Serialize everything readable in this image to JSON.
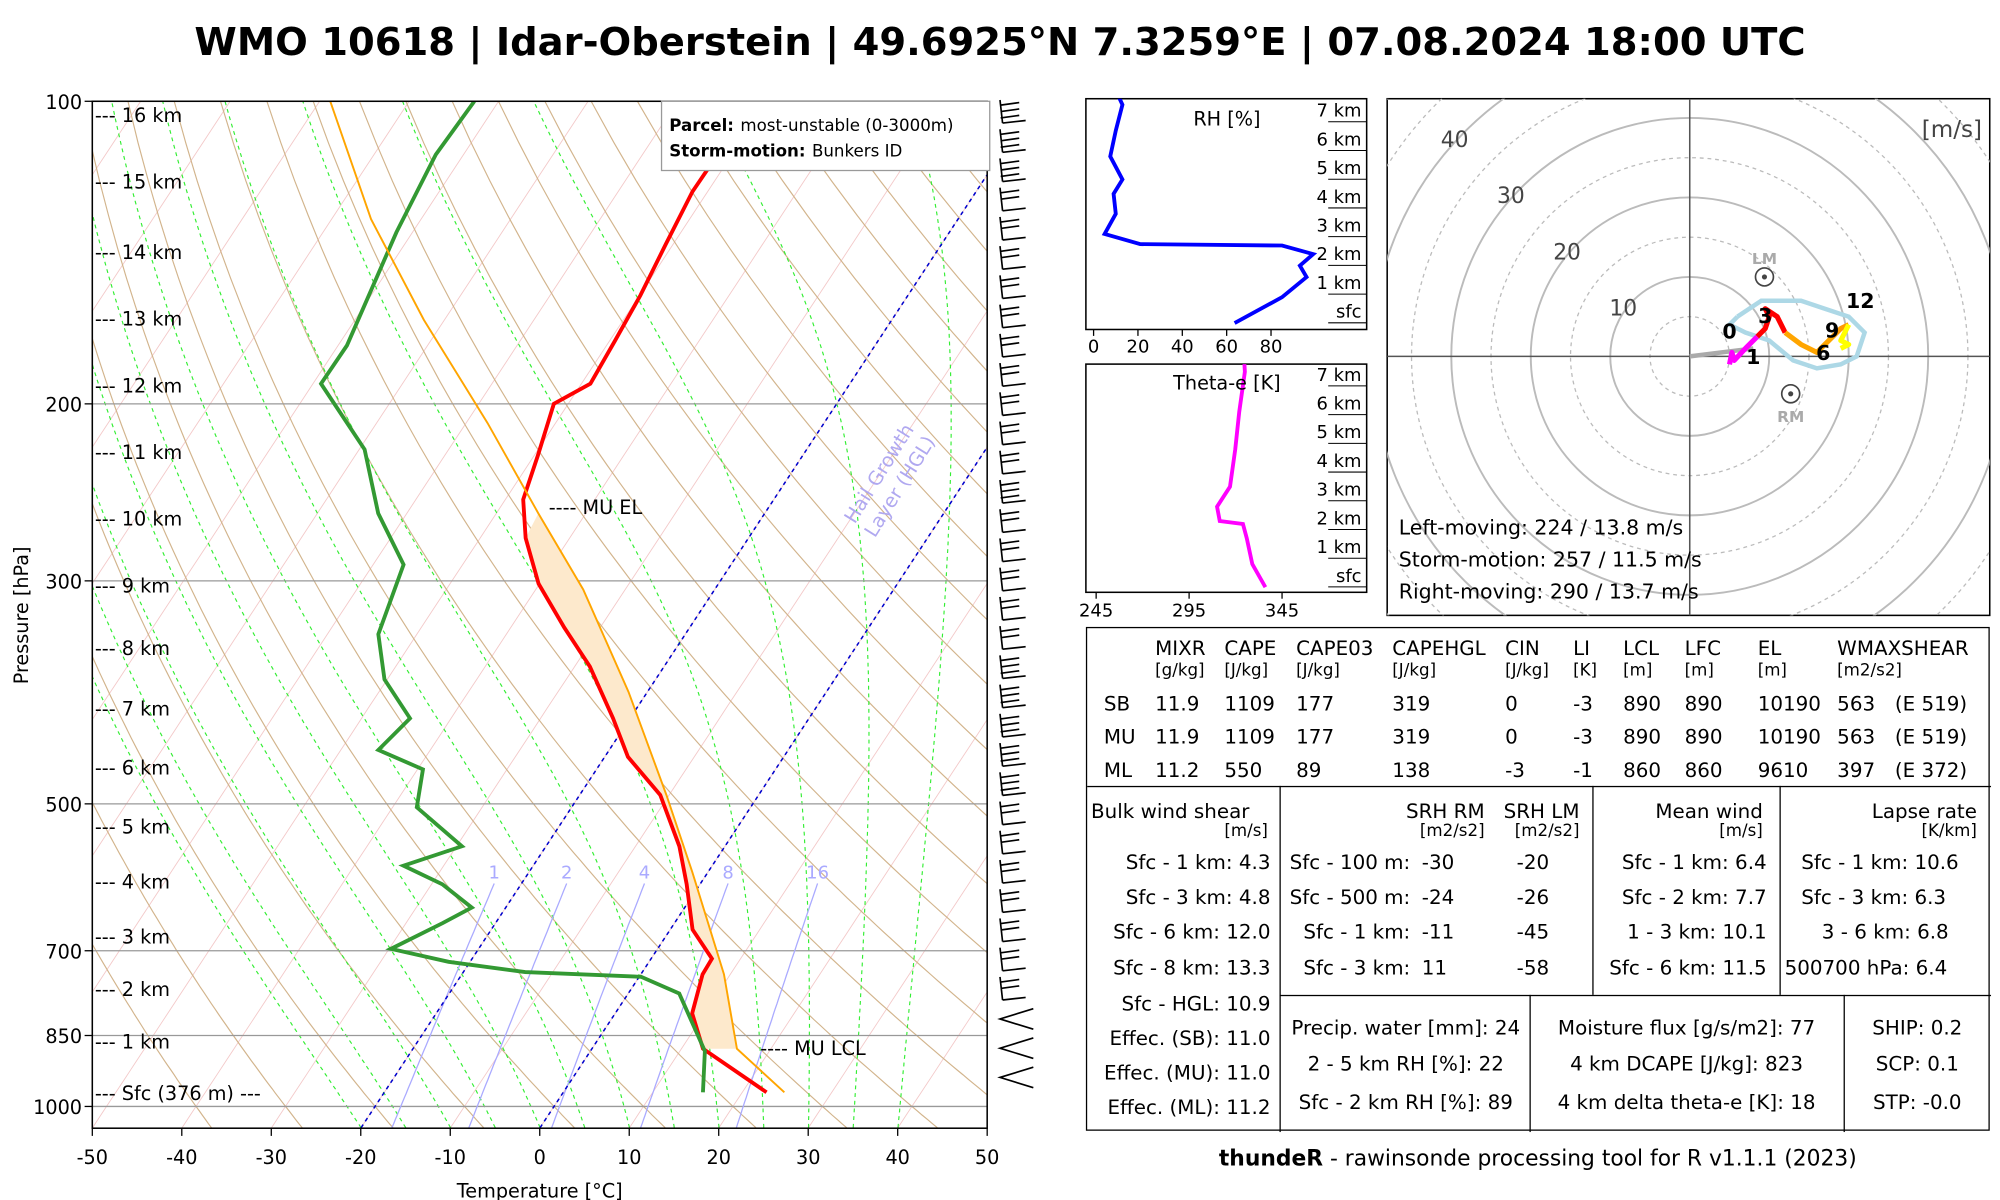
{
  "title": "WMO 10618 | Idar-Oberstein | 49.6925°N 7.3259°E | 07.08.2024 18:00 UTC",
  "footer": {
    "brand": "thundeR",
    "text": " - rawinsonde processing tool for R v1.1.1 (2023)"
  },
  "skewt": {
    "legend": {
      "parcel_label": "Parcel:",
      "parcel_value": "most-unstable (0-3000m)",
      "storm_label": "Storm-motion:",
      "storm_value": "Bunkers ID"
    },
    "height_labels": [
      "--- 16 km",
      "--- 15 km",
      "--- 14 km",
      "--- 13 km",
      "--- 12 km",
      "--- 11 km",
      "--- 10 km",
      "--- 9 km",
      "--- 8 km",
      "--- 7 km",
      "--- 6 km",
      "--- 5 km",
      "--- 4 km",
      "--- 3 km",
      "--- 2 km",
      "--- 1 km",
      "--- Sfc (376 m) ---"
    ],
    "mu_el": "---- MU EL",
    "mu_lcl": "---- MU LCL",
    "hgl_label": "Hail Growth\nLayer (HGL)",
    "hgl_line1": "Hail Growth",
    "hgl_line2": "Layer (HGL)",
    "mixing_ratio_labels": [
      "1",
      "2",
      "4",
      "8",
      "16"
    ]
  },
  "chart_data": [
    {
      "type": "line",
      "name": "skew-t",
      "xlabel": "Temperature [°C]",
      "ylabel": "Pressure [hPa]",
      "xlim": [
        -50,
        50
      ],
      "ylim": [
        1050,
        100
      ],
      "x_ticks": [
        "-50",
        "-40",
        "-30",
        "-20",
        "-10",
        "0",
        "10",
        "20",
        "30",
        "40",
        "50"
      ],
      "y_ticks": [
        "100",
        "200",
        "300",
        "500",
        "700",
        "850",
        "1000"
      ],
      "series": [
        {
          "name": "temperature",
          "color": "#ff0000",
          "p": [
            968,
            876,
            808,
            739,
            713,
            667,
            601,
            551,
            490,
            449,
            411,
            365,
            334,
            302,
            272,
            249,
            225,
            200,
            191,
            173,
            156,
            139,
            123,
            113,
            100
          ],
          "t": [
            22.7,
            12.4,
            8.6,
            6.9,
            6.8,
            2.5,
            -1.5,
            -5.1,
            -11,
            -17.4,
            -21.9,
            -28.3,
            -34,
            -40.1,
            -44.9,
            -48,
            -49.6,
            -51.6,
            -49,
            -49.4,
            -49.9,
            -50.8,
            -51.7,
            -51.6,
            -51.2
          ]
        },
        {
          "name": "dewpoint",
          "color": "#339933",
          "p": [
            968,
            881,
            772,
            743,
            735,
            718,
            697,
            657,
            634,
            601,
            576,
            551,
            504,
            462,
            442,
            411,
            376,
            339,
            289,
            257,
            222,
            191,
            175,
            135,
            113,
            100
          ],
          "t": [
            15.6,
            12.8,
            5.7,
            0.2,
            -13.1,
            -22.4,
            -29.8,
            -25.9,
            -23.8,
            -28.8,
            -34.5,
            -29.4,
            -37.3,
            -39.4,
            -45.8,
            -44.6,
            -50.3,
            -54.3,
            -56.6,
            -63.2,
            -69.4,
            -79.1,
            -79,
            -81.8,
            -83.1,
            -82.7
          ]
        },
        {
          "name": "mu-parcel",
          "color": "#ffa500",
          "p": [
            968,
            876,
            739,
            584,
            490,
            387,
            306,
            257,
            209,
            165,
            131,
            100
          ],
          "t": [
            24.7,
            16.2,
            9.3,
            -1.8,
            -10.3,
            -22.1,
            -34.7,
            -45.3,
            -57.6,
            -72.3,
            -85.6,
            -98.8
          ]
        }
      ],
      "wind_barb_ticks": [
        3,
        3,
        3,
        2,
        2,
        2,
        2,
        2,
        2,
        2,
        2,
        2,
        2,
        3,
        2,
        2,
        2,
        2,
        2,
        3,
        3,
        3,
        3,
        3,
        2,
        2,
        2,
        2,
        2,
        2,
        2,
        1,
        1,
        1
      ]
    },
    {
      "type": "line",
      "name": "rh-profile",
      "title": "RH [%]",
      "xlim": [
        0,
        100
      ],
      "x_ticks": [
        "0",
        "20",
        "40",
        "60",
        "80"
      ],
      "height_labels": [
        "7 km",
        "6 km",
        "5 km",
        "4 km",
        "3 km",
        "2 km",
        "1 km",
        "sfc"
      ],
      "height_km": [
        -0.4,
        0.5,
        1.2,
        1.6,
        2.0,
        2.3,
        2.35,
        2.7,
        3.4,
        4.1,
        4.6,
        5.4,
        6.3,
        7.2,
        7.7
      ],
      "rh": [
        63.6,
        85,
        96,
        93,
        99,
        85,
        21,
        5,
        10,
        9,
        13,
        7.5,
        10,
        13,
        10
      ],
      "color": "#0000ff"
    },
    {
      "type": "line",
      "name": "theta-e-profile",
      "title": "Theta-e [K]",
      "xlim": [
        245,
        345
      ],
      "x_ticks": [
        "245",
        "295",
        "345"
      ],
      "height_labels": [
        "7 km",
        "6 km",
        "5 km",
        "4 km",
        "3 km",
        "2 km",
        "1 km",
        "sfc"
      ],
      "height_km": [
        -0.4,
        0.4,
        1.3,
        1.8,
        1.9,
        2.4,
        3.1,
        4.4,
        5.7,
        7.1,
        7.4
      ],
      "theta_e": [
        336,
        329,
        326,
        324,
        311.5,
        310,
        317,
        319.8,
        322,
        325,
        324.7
      ],
      "color": "#ff00ff"
    },
    {
      "type": "line",
      "name": "hodograph",
      "unit_label": "[m/s]",
      "ring_labels": [
        "10",
        "20",
        "30",
        "40"
      ],
      "segments": [
        {
          "name": "0-1km",
          "color": "#ff00ff",
          "u": [
            5,
            5.3,
            5.6,
            7,
            8.5
          ],
          "v": [
            -1,
            0.5,
            -0.5,
            1,
            2.5
          ]
        },
        {
          "name": "1-3km",
          "color": "#ff0000",
          "u": [
            8.5,
            9.5,
            10,
            9.5,
            11,
            12
          ],
          "v": [
            2.5,
            3.5,
            5,
            6,
            5,
            3
          ]
        },
        {
          "name": "3-6km",
          "color": "#ffa500",
          "u": [
            12,
            14,
            16,
            17,
            18
          ],
          "v": [
            3,
            1.5,
            0.5,
            1.5,
            2.5
          ]
        },
        {
          "name": "6-9km",
          "color": "#ff9900",
          "u": [
            18,
            19,
            20
          ],
          "v": [
            2.5,
            3.5,
            4
          ]
        },
        {
          "name": "9-12km",
          "color": "#ffff00",
          "u": [
            20,
            19,
            20,
            19
          ],
          "v": [
            4,
            2,
            1.5,
            1
          ]
        }
      ],
      "envelope": {
        "color": "#add8e6",
        "u": [
          6,
          9,
          12,
          14,
          17,
          20,
          22,
          21,
          19,
          16,
          13,
          10,
          7,
          5,
          6
        ],
        "v": [
          5,
          7,
          7,
          7,
          6,
          5,
          3,
          0,
          -1,
          -1.5,
          -0.5,
          2,
          3,
          4,
          5
        ]
      },
      "height_marks": [
        {
          "label": "0",
          "u": 5,
          "v": 3.2
        },
        {
          "label": "1",
          "u": 8,
          "v": 0
        },
        {
          "label": "3",
          "u": 9.5,
          "v": 5.2
        },
        {
          "label": "6",
          "u": 16.8,
          "v": 0.5
        },
        {
          "label": "9",
          "u": 18.4,
          "v": 4
        },
        {
          "label": "12",
          "u": 20,
          "v": 5.3
        }
      ],
      "lm": {
        "label": "LM",
        "u": 9.4,
        "v": 10
      },
      "rm": {
        "label": "RM",
        "u": 12.7,
        "v": -4.7
      },
      "mean": {
        "u": 8,
        "v": 1
      },
      "left_moving": "Left-moving: 224 / 13.8 m/s",
      "storm_motion": "Storm-motion: 257 / 11.5 m/s",
      "right_moving": "Right-moving: 290 / 13.7 m/s"
    }
  ],
  "table": {
    "headers": [
      {
        "name": "MIXR",
        "unit": "[g/kg]"
      },
      {
        "name": "CAPE",
        "unit": "[J/kg]"
      },
      {
        "name": "CAPE03",
        "unit": "[J/kg]"
      },
      {
        "name": "CAPEHGL",
        "unit": "[J/kg]"
      },
      {
        "name": "CIN",
        "unit": "[J/kg]"
      },
      {
        "name": "LI",
        "unit": "[K]"
      },
      {
        "name": "LCL",
        "unit": "[m]"
      },
      {
        "name": "LFC",
        "unit": "[m]"
      },
      {
        "name": "EL",
        "unit": "[m]"
      },
      {
        "name": "WMAXSHEAR",
        "unit": "[m2/s2]"
      }
    ],
    "rows": [
      {
        "label": "SB",
        "values": [
          "11.9",
          "1109",
          "177",
          "319",
          "0",
          "-3",
          "890",
          "890",
          "10190",
          "563",
          "(E 519)"
        ]
      },
      {
        "label": "MU",
        "values": [
          "11.9",
          "1109",
          "177",
          "319",
          "0",
          "-3",
          "890",
          "890",
          "10190",
          "563",
          "(E 519)"
        ]
      },
      {
        "label": "ML",
        "values": [
          "11.2",
          "550",
          "89",
          "138",
          "-3",
          "-1",
          "860",
          "860",
          "9610",
          "397",
          "(E 372)"
        ]
      }
    ],
    "bulk": {
      "title": "Bulk wind shear",
      "unit": "[m/s]",
      "rows": [
        "Sfc - 1 km: 4.3",
        "Sfc - 3 km: 4.8",
        "Sfc - 6 km: 12.0",
        "Sfc - 8 km: 13.3",
        "Sfc - HGL: 10.9",
        "Effec. (SB): 11.0",
        "Effec. (MU): 11.0",
        "Effec. (ML): 11.2"
      ]
    },
    "srh": {
      "rm_title": "SRH RM",
      "lm_title": "SRH LM",
      "rm_unit": "[m2/s2]",
      "lm_unit": "[m2/s2]",
      "rows": [
        {
          "label": "Sfc - 100 m:",
          "rm": "-30",
          "lm": "-20"
        },
        {
          "label": "Sfc - 500 m:",
          "rm": "-24",
          "lm": "-26"
        },
        {
          "label": "Sfc - 1 km:",
          "rm": "-11",
          "lm": "-45"
        },
        {
          "label": "Sfc - 3 km:",
          "rm": "11",
          "lm": "-58"
        }
      ]
    },
    "mean_wind": {
      "title": "Mean wind",
      "unit": "[m/s]",
      "rows": [
        "Sfc - 1 km: 6.4",
        "Sfc - 2 km: 7.7",
        "1 - 3 km: 10.1",
        "Sfc - 6 km: 11.5"
      ]
    },
    "lapse": {
      "title": "Lapse rate",
      "unit": "[K/km]",
      "rows": [
        "Sfc - 1 km: 10.6",
        "Sfc - 3 km: 6.3",
        "3 - 6 km: 6.8",
        "500700 hPa: 6.4"
      ]
    },
    "moisture1": [
      "Precip. water [mm]: 24",
      "2 - 5 km RH [%]: 22",
      "Sfc - 2 km RH [%]: 89"
    ],
    "moisture2": [
      "Moisture flux [g/s/m2]: 77",
      "4 km DCAPE [J/kg]: 823",
      "4 km delta theta-e [K]: 18"
    ],
    "indices": [
      "SHIP: 0.2",
      "SCP: 0.1",
      "STP: -0.0"
    ]
  }
}
